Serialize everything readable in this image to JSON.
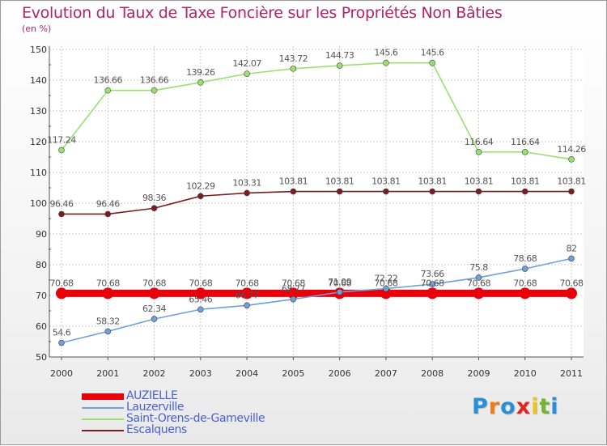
{
  "page": {
    "title": "Evolution du Taux de Taxe Foncière sur les Propriétés Non Bâties",
    "unit": "(en %)"
  },
  "logo": {
    "text": "Proxiti",
    "letters": [
      "P",
      "r",
      "o",
      "x",
      "i",
      "t",
      "i"
    ],
    "colors": [
      "#2a8fd6",
      "#f07d1a",
      "#2a8fd6",
      "#e0261f",
      "#f2c21b",
      "#73b52f",
      "#2a8fd6"
    ]
  },
  "chart_data": {
    "type": "line",
    "title": "Evolution du Taux de Taxe Foncière sur les Propriétés Non Bâties",
    "ylabel": "(en %)",
    "xlabel": "",
    "x": [
      "2000",
      "2001",
      "2002",
      "2003",
      "2004",
      "2005",
      "2006",
      "2007",
      "2008",
      "2009",
      "2010",
      "2011"
    ],
    "ylim": [
      50,
      150
    ],
    "yticks": [
      "50",
      "60",
      "70",
      "80",
      "90",
      "100",
      "110",
      "120",
      "130",
      "140",
      "150"
    ],
    "grid": true,
    "legend_position": "bottom-left",
    "series": [
      {
        "name": "AUZIELLE",
        "color": "#e8000b",
        "values": [
          70.68,
          70.68,
          70.68,
          70.68,
          70.68,
          70.68,
          70.68,
          70.68,
          70.68,
          70.68,
          70.68,
          70.68
        ],
        "labels": [
          "70.68",
          "70.68",
          "70.68",
          "70.68",
          "70.68",
          "70.68",
          "70.68",
          "70.68",
          "70.68",
          "70.68",
          "70.68",
          "70.68"
        ]
      },
      {
        "name": "Lauzerville",
        "color": "#6fa0d8",
        "values": [
          54.6,
          58.32,
          62.34,
          65.46,
          66.77,
          68.77,
          71.09,
          72.22,
          73.66,
          75.8,
          78.68,
          82
        ],
        "labels": [
          "54.6",
          "58.32",
          "62.34",
          "65.46",
          "66.77",
          "68.77",
          "71.09",
          "72.22",
          "73.66",
          "75.8",
          "78.68",
          "82"
        ]
      },
      {
        "name": "Saint-Orens-de-Gameville",
        "color": "#99e070",
        "values": [
          117.24,
          136.66,
          136.66,
          139.26,
          142.07,
          143.72,
          144.73,
          145.6,
          145.6,
          116.64,
          116.64,
          114.26
        ],
        "labels": [
          "117.24",
          "136.66",
          "136.66",
          "139.26",
          "142.07",
          "143.72",
          "144.73",
          "145.6",
          "145.6",
          "116.64",
          "116.64",
          "114.26"
        ]
      },
      {
        "name": "Escalquens",
        "color": "#7a1c22",
        "values": [
          96.46,
          96.46,
          98.36,
          102.29,
          103.31,
          103.81,
          103.81,
          103.81,
          103.81,
          103.81,
          103.81,
          103.81
        ],
        "labels": [
          "96.46",
          "96.46",
          "98.36",
          "102.29",
          "103.31",
          "103.81",
          "103.81",
          "103.81",
          "103.81",
          "103.81",
          "103.81",
          "103.81"
        ]
      }
    ]
  }
}
